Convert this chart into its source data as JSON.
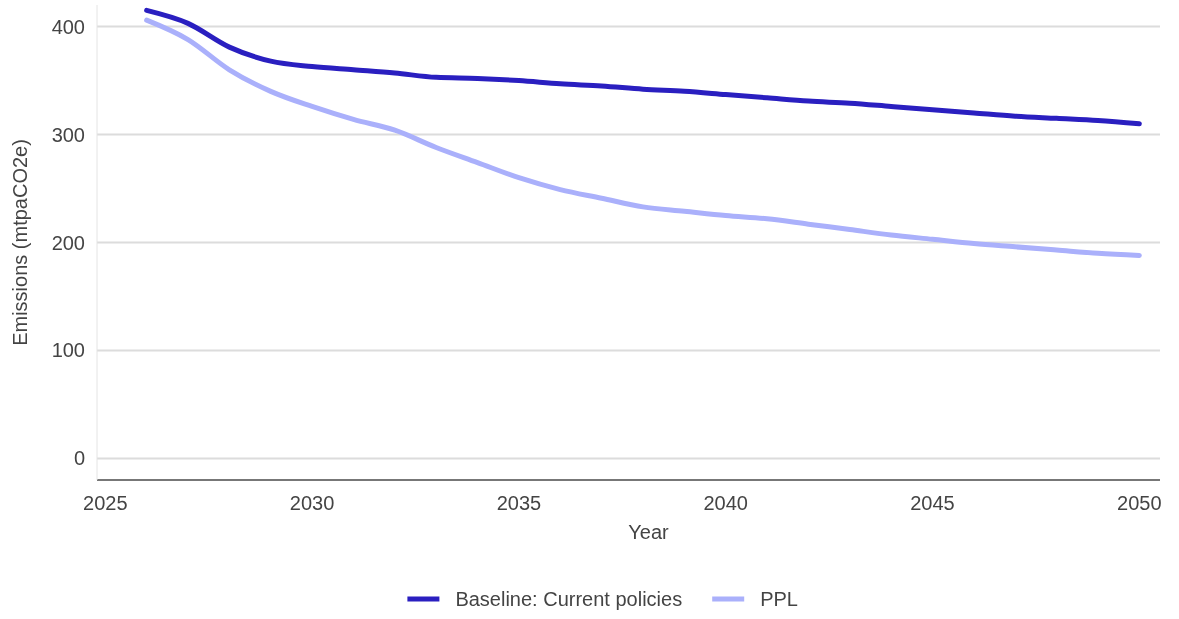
{
  "chart_data": {
    "type": "line",
    "xlabel": "Year",
    "ylabel": "Emissions (mtpaCO2e)",
    "x": [
      2026,
      2027,
      2028,
      2029,
      2030,
      2031,
      2032,
      2033,
      2034,
      2035,
      2036,
      2037,
      2038,
      2039,
      2040,
      2041,
      2042,
      2043,
      2044,
      2045,
      2046,
      2047,
      2048,
      2049,
      2050
    ],
    "series": [
      {
        "name": "Baseline: Current policies",
        "color": "#2a1fc0",
        "values": [
          415,
          403,
          381,
          368,
          363,
          360,
          357,
          353,
          352,
          350,
          347,
          345,
          342,
          340,
          337,
          334,
          331,
          329,
          326,
          323,
          320,
          317,
          315,
          313,
          310
        ]
      },
      {
        "name": "PPL",
        "color": "#aab0fb",
        "values": [
          406,
          388,
          360,
          340,
          326,
          314,
          304,
          288,
          274,
          260,
          249,
          241,
          233,
          229,
          225,
          222,
          217,
          212,
          207,
          203,
          199,
          196,
          193,
          190,
          188
        ]
      }
    ],
    "xlim": [
      2024.8,
      2050.5
    ],
    "xticks": [
      2025,
      2030,
      2035,
      2040,
      2045,
      2050
    ],
    "ylim": [
      -20,
      420
    ],
    "yticks": [
      0,
      100,
      200,
      300,
      400
    ],
    "grid": "y",
    "legend": "bottom",
    "marker": "none",
    "line_style": "solid"
  }
}
